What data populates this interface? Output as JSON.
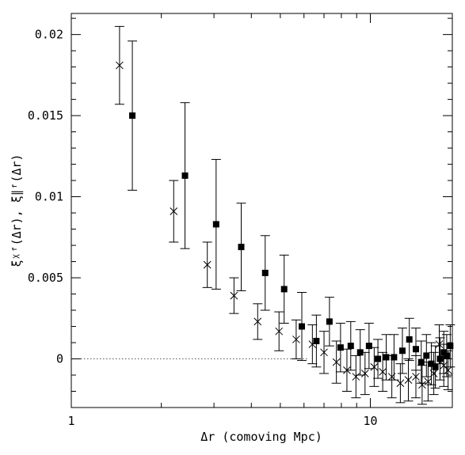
{
  "chart_data": {
    "type": "scatter",
    "title": "",
    "xlabel": "Δr (comoving Mpc)",
    "ylabel": "ξᵡᶠ(Δr), ξ∥ᶠ(Δr)",
    "xscale": "log",
    "xlim": [
      1,
      18.8
    ],
    "ylim": [
      -0.003,
      0.0213
    ],
    "x_ticks": [
      {
        "value": 1,
        "label": "1"
      },
      {
        "value": 10,
        "label": "10"
      }
    ],
    "y_ticks": [
      {
        "value": 0,
        "label": "0"
      },
      {
        "value": 0.005,
        "label": "0.005"
      },
      {
        "value": 0.01,
        "label": "0.01"
      },
      {
        "value": 0.015,
        "label": "0.015"
      },
      {
        "value": 0.02,
        "label": "0.02"
      }
    ],
    "reference_line": {
      "y": 0,
      "style": "dotted",
      "x_end": 6.2
    },
    "grid": false,
    "legend": false,
    "series": [
      {
        "marker": "cross",
        "points": [
          {
            "x": 1.45,
            "y": 0.0181,
            "err": 0.0024
          },
          {
            "x": 2.2,
            "y": 0.0091,
            "err": 0.0019
          },
          {
            "x": 2.85,
            "y": 0.0058,
            "err": 0.0014
          },
          {
            "x": 3.5,
            "y": 0.0039,
            "err": 0.0011
          },
          {
            "x": 4.2,
            "y": 0.0023,
            "err": 0.0011
          },
          {
            "x": 4.95,
            "y": 0.0017,
            "err": 0.0012
          },
          {
            "x": 5.65,
            "y": 0.0012,
            "err": 0.0012
          },
          {
            "x": 6.4,
            "y": 0.0009,
            "err": 0.0012
          },
          {
            "x": 7.0,
            "y": 0.0004,
            "err": 0.0013
          },
          {
            "x": 7.7,
            "y": -0.0002,
            "err": 0.0013
          },
          {
            "x": 8.35,
            "y": -0.0007,
            "err": 0.0013
          },
          {
            "x": 8.95,
            "y": -0.0011,
            "err": 0.0013
          },
          {
            "x": 9.6,
            "y": -0.0009,
            "err": 0.0013
          },
          {
            "x": 10.3,
            "y": -0.0005,
            "err": 0.0012
          },
          {
            "x": 11.0,
            "y": -0.0008,
            "err": 0.0012
          },
          {
            "x": 11.8,
            "y": -0.0011,
            "err": 0.0013
          },
          {
            "x": 12.6,
            "y": -0.0015,
            "err": 0.0012
          },
          {
            "x": 13.4,
            "y": -0.0013,
            "err": 0.0013
          },
          {
            "x": 14.2,
            "y": -0.0011,
            "err": 0.0013
          },
          {
            "x": 14.9,
            "y": -0.0016,
            "err": 0.0012
          },
          {
            "x": 15.6,
            "y": -0.0014,
            "err": 0.0012
          },
          {
            "x": 16.3,
            "y": -0.0009,
            "err": 0.0013
          },
          {
            "x": 17.0,
            "y": 0.0009,
            "err": 0.0012
          },
          {
            "x": 17.6,
            "y": -0.0004,
            "err": 0.0013
          },
          {
            "x": 18.2,
            "y": -0.0007,
            "err": 0.0012
          }
        ]
      },
      {
        "marker": "filled-square",
        "points": [
          {
            "x": 1.6,
            "y": 0.015,
            "err": 0.0046
          },
          {
            "x": 2.4,
            "y": 0.0113,
            "err": 0.0045
          },
          {
            "x": 3.05,
            "y": 0.0083,
            "err": 0.004
          },
          {
            "x": 3.7,
            "y": 0.0069,
            "err": 0.0027
          },
          {
            "x": 4.45,
            "y": 0.0053,
            "err": 0.0023
          },
          {
            "x": 5.15,
            "y": 0.0043,
            "err": 0.0021
          },
          {
            "x": 5.9,
            "y": 0.002,
            "err": 0.0021
          },
          {
            "x": 6.6,
            "y": 0.0011,
            "err": 0.0016
          },
          {
            "x": 7.3,
            "y": 0.0023,
            "err": 0.0015
          },
          {
            "x": 7.95,
            "y": 0.0007,
            "err": 0.0015
          },
          {
            "x": 8.6,
            "y": 0.0008,
            "err": 0.0015
          },
          {
            "x": 9.25,
            "y": 0.0004,
            "err": 0.0014
          },
          {
            "x": 9.9,
            "y": 0.0008,
            "err": 0.0014
          },
          {
            "x": 10.6,
            "y": 0.0,
            "err": 0.0012
          },
          {
            "x": 11.3,
            "y": 0.0001,
            "err": 0.0014
          },
          {
            "x": 12.0,
            "y": 0.0001,
            "err": 0.0014
          },
          {
            "x": 12.8,
            "y": 0.0005,
            "err": 0.0014
          },
          {
            "x": 13.5,
            "y": 0.0012,
            "err": 0.0013
          },
          {
            "x": 14.2,
            "y": 0.0006,
            "err": 0.0013
          },
          {
            "x": 14.8,
            "y": -0.0002,
            "err": 0.0013
          },
          {
            "x": 15.4,
            "y": 0.0002,
            "err": 0.0013
          },
          {
            "x": 16.0,
            "y": -0.0003,
            "err": 0.0013
          },
          {
            "x": 16.5,
            "y": -0.0005,
            "err": 0.0013
          },
          {
            "x": 17.1,
            "y": 0.0,
            "err": 0.0013
          },
          {
            "x": 17.6,
            "y": 0.0004,
            "err": 0.0013
          },
          {
            "x": 18.0,
            "y": 0.0002,
            "err": 0.0013
          },
          {
            "x": 18.5,
            "y": 0.0008,
            "err": 0.0013
          }
        ]
      }
    ]
  }
}
